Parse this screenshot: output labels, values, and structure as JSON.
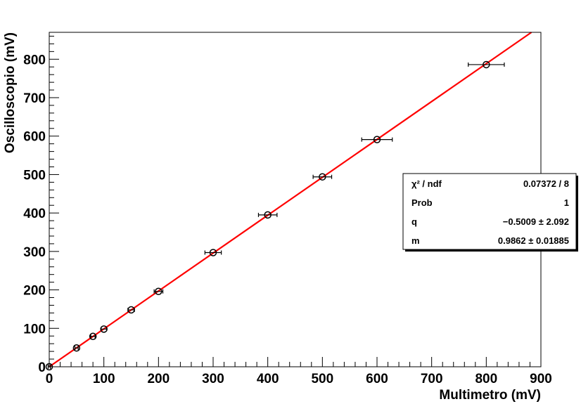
{
  "chart_data": {
    "type": "scatter",
    "xlabel": "Multimetro (mV)",
    "ylabel": "Oscilloscopio (mV)",
    "xlim": [
      0,
      900
    ],
    "ylim": [
      0,
      870
    ],
    "x_ticks": [
      "0",
      "100",
      "200",
      "300",
      "400",
      "500",
      "600",
      "700",
      "800",
      "900"
    ],
    "y_ticks": [
      "0",
      "100",
      "200",
      "300",
      "400",
      "500",
      "600",
      "700",
      "800"
    ],
    "grid": false,
    "series": [
      {
        "type": "scatter_errorbars",
        "color": "#000000",
        "points": [
          {
            "x": 0,
            "y": 0,
            "xerr": 2
          },
          {
            "x": 50,
            "y": 49,
            "xerr": 3
          },
          {
            "x": 80,
            "y": 79,
            "xerr": 4
          },
          {
            "x": 100,
            "y": 98,
            "xerr": 5
          },
          {
            "x": 150,
            "y": 148,
            "xerr": 6
          },
          {
            "x": 200,
            "y": 196,
            "xerr": 8
          },
          {
            "x": 300,
            "y": 297,
            "xerr": 15
          },
          {
            "x": 400,
            "y": 395,
            "xerr": 17
          },
          {
            "x": 500,
            "y": 494,
            "xerr": 17
          },
          {
            "x": 600,
            "y": 591,
            "xerr": 28
          },
          {
            "x": 800,
            "y": 786,
            "xerr": 33
          }
        ]
      },
      {
        "type": "fit_line",
        "color": "#ff0000",
        "intercept": -0.5009,
        "slope": 0.9862
      }
    ],
    "stats_box": {
      "position": "right",
      "rows": [
        {
          "label": "χ² / ndf",
          "value": "0.07372 / 8"
        },
        {
          "label": "Prob",
          "value": "1"
        },
        {
          "label": "q",
          "value": "−0.5009 ± 2.092"
        },
        {
          "label": "m",
          "value": "0.9862 ± 0.01885"
        }
      ]
    }
  }
}
